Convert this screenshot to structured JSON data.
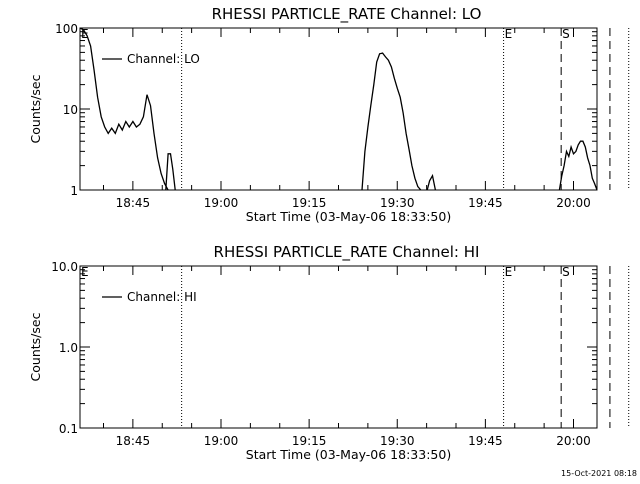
{
  "chart_data": [
    {
      "type": "line",
      "title": "RHESSI PARTICLE_RATE Channel: LO",
      "xlabel": "Start Time (03-May-06 18:33:50)",
      "ylabel": "Counts/sec",
      "yscale": "log",
      "ylim": [
        1,
        100
      ],
      "xlim_minutes": [
        36,
        124
      ],
      "x_ticks": [
        {
          "label": "18:45",
          "minute": 45
        },
        {
          "label": "19:00",
          "minute": 60
        },
        {
          "label": "19:15",
          "minute": 75
        },
        {
          "label": "19:30",
          "minute": 90
        },
        {
          "label": "19:45",
          "minute": 105
        },
        {
          "label": "20:00",
          "minute": 120
        }
      ],
      "y_ticks": [
        {
          "label": "100",
          "value": 100
        },
        {
          "label": "10",
          "value": 10
        },
        {
          "label": "1",
          "value": 1
        }
      ],
      "legend": {
        "label": "Channel: LO",
        "position": "top-left"
      },
      "segments": [
        {
          "minutes": [
            36,
            36.6,
            37.2,
            37.8,
            38.4,
            39,
            39.6,
            40.2,
            40.8,
            41.4,
            42,
            42.6,
            43.2,
            43.8,
            44.4,
            45,
            45.6,
            46.2,
            46.8,
            47.4,
            48,
            48.6,
            49.2,
            49.8,
            50.4,
            51
          ],
          "values": [
            100,
            95,
            80,
            60,
            30,
            14,
            8,
            6,
            5,
            5.8,
            5,
            6.5,
            5.5,
            7,
            6,
            7,
            6,
            6.5,
            8,
            15,
            11,
            5,
            2.5,
            1.6,
            1.2,
            1
          ]
        },
        {
          "minutes": [
            50.6,
            51,
            51.4,
            51.8,
            52.2
          ],
          "values": [
            1,
            2.8,
            2.8,
            1.8,
            1
          ]
        },
        {
          "minutes": [
            84,
            84.5,
            85,
            85.5,
            86,
            86.5,
            87,
            87.5,
            88,
            88.5,
            89,
            89.5,
            90,
            90.5,
            91,
            91.5,
            92,
            92.5,
            93,
            93.5,
            94
          ],
          "values": [
            1,
            3,
            6,
            11,
            20,
            38,
            48,
            49,
            44,
            40,
            33,
            24,
            18,
            14,
            9,
            5,
            3.2,
            2,
            1.4,
            1.1,
            1
          ]
        },
        {
          "minutes": [
            95.1,
            95.5,
            96,
            96.5
          ],
          "values": [
            1,
            1.3,
            1.5,
            1
          ]
        },
        {
          "minutes": [
            117.6,
            118,
            118.4,
            118.8,
            119.2,
            119.6,
            120,
            120.4,
            120.8,
            121.2,
            121.6,
            122,
            122.4,
            122.8,
            123.2,
            123.6,
            124
          ],
          "values": [
            1,
            1.5,
            2,
            3,
            2.6,
            3.4,
            2.8,
            3,
            3.6,
            4,
            4,
            3.4,
            2.5,
            2,
            1.4,
            1.2,
            1
          ]
        },
        {
          "minutes": [
            124,
            124.6,
            125.2,
            125.8,
            126.4
          ],
          "values": [
            1,
            2.4,
            2.6,
            2,
            1.2
          ]
        },
        {
          "minutes": [
            129.4,
            129.8,
            130.2,
            130.6
          ],
          "values": [
            2,
            4,
            7.5,
            10
          ]
        }
      ],
      "event_markers": [
        {
          "label": "E",
          "minute": 36,
          "style": "none"
        },
        {
          "label": "",
          "minute": 53.3,
          "style": "dotted"
        },
        {
          "label": "E",
          "minute": 108.1,
          "style": "dotted"
        },
        {
          "label": "S",
          "minute": 117.9,
          "style": "dashed"
        },
        {
          "label": "",
          "minute": 126.2,
          "style": "dashed"
        },
        {
          "label": "",
          "minute": 129.4,
          "style": "dotted"
        }
      ]
    },
    {
      "type": "line",
      "title": "RHESSI PARTICLE_RATE Channel: HI",
      "xlabel": "Start Time (03-May-06 18:33:50)",
      "ylabel": "Counts/sec",
      "yscale": "log",
      "ylim": [
        0.1,
        10
      ],
      "xlim_minutes": [
        36,
        124
      ],
      "x_ticks": [
        {
          "label": "18:45",
          "minute": 45
        },
        {
          "label": "19:00",
          "minute": 60
        },
        {
          "label": "19:15",
          "minute": 75
        },
        {
          "label": "19:30",
          "minute": 90
        },
        {
          "label": "19:45",
          "minute": 105
        },
        {
          "label": "20:00",
          "minute": 120
        }
      ],
      "y_ticks": [
        {
          "label": "10.0",
          "value": 10
        },
        {
          "label": "1.0",
          "value": 1
        },
        {
          "label": "0.1",
          "value": 0.1
        }
      ],
      "legend": {
        "label": "Channel: HI",
        "position": "top-left"
      },
      "segments": [],
      "event_markers": [
        {
          "label": "E",
          "minute": 36,
          "style": "none"
        },
        {
          "label": "",
          "minute": 53.3,
          "style": "dotted"
        },
        {
          "label": "E",
          "minute": 108.1,
          "style": "dotted"
        },
        {
          "label": "S",
          "minute": 117.9,
          "style": "dashed"
        },
        {
          "label": "",
          "minute": 126.2,
          "style": "dashed"
        },
        {
          "label": "",
          "minute": 129.4,
          "style": "dotted"
        }
      ]
    }
  ],
  "footer": {
    "timestamp": "15-Oct-2021 08:18"
  }
}
